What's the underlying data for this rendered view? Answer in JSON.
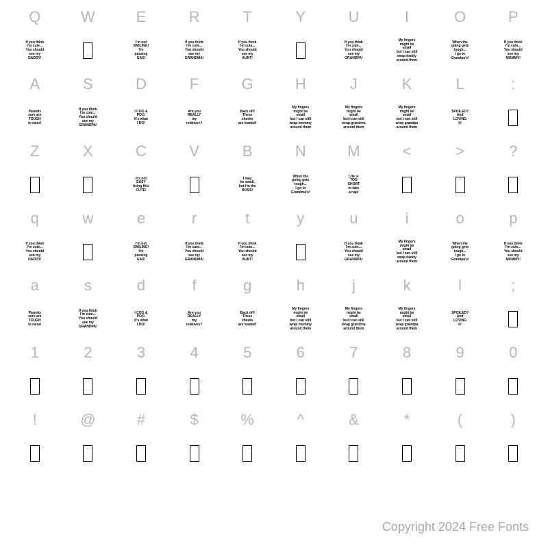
{
  "copyright": "Copyright 2024 Free Fonts",
  "char_color": "#b6b6b6",
  "text_color": "#000000",
  "background": "#ffffff",
  "rows": [
    {
      "chars": [
        "Q",
        "W",
        "E",
        "R",
        "T",
        "Y",
        "U",
        "I",
        "O",
        "P"
      ],
      "glyphs": [
        {
          "t": "text",
          "v": "If you think\nI'm cute...\nYou should\nsee my\nDADDY!"
        },
        {
          "t": "box"
        },
        {
          "t": "text",
          "v": "I'm not\nSMILING!\nI'm\npassing\nGAS!"
        },
        {
          "t": "text",
          "v": "If you think\nI'm cute...\nYou should\nsee my\nGRANDMA!"
        },
        {
          "t": "text",
          "v": "If you think\nI'm cute...\nYou should\nsee my\nAUNT!"
        },
        {
          "t": "box"
        },
        {
          "t": "text",
          "v": "If you think\nI'm cute...\nYou should\nsee my\nGRANDPA!"
        },
        {
          "t": "text",
          "v": "My fingers\nmight be\nsmall\nbut I can still\nwrap daddy\naround them"
        },
        {
          "t": "text",
          "v": "When the\ngoing gets\ntough...\nI go to\nGrandpa's!"
        },
        {
          "t": "text",
          "v": "If you think\nI'm cute...\nYou should\nsee my\nMOMMY!"
        }
      ]
    },
    {
      "chars": [
        "A",
        "S",
        "D",
        "F",
        "G",
        "H",
        "J",
        "K",
        "L",
        ":"
      ],
      "glyphs": [
        {
          "t": "text",
          "v": "Parents\nsure are\nTOUGH\nto raise!"
        },
        {
          "t": "text",
          "v": "If you think\nI'm cute...\nYou should\nsee my\nGRANDPA!"
        },
        {
          "t": "text",
          "v": "I COO &\nPOO.\nIt's what\nI DO!"
        },
        {
          "t": "text",
          "v": "Are you\nREALLY\nmy\nrelatives?"
        },
        {
          "t": "text",
          "v": "Back off!\nThese\ncheeks\nare loaded!"
        },
        {
          "t": "text",
          "v": "My fingers\nmight be\nsmall\nbut I can still\nwrap mommy\naround them"
        },
        {
          "t": "text",
          "v": "My fingers\nmight be\nsmall\nbut I can still\nwrap grandma\naround them"
        },
        {
          "t": "text",
          "v": "My fingers\nmight be\nsmall\nbut I can still\nwrap grandpa\naround them"
        },
        {
          "t": "text",
          "v": "SPOILED?\nAnd\nLOVING\nIt!"
        },
        {
          "t": "box"
        }
      ]
    },
    {
      "chars": [
        "Z",
        "X",
        "C",
        "V",
        "B",
        "N",
        "M",
        "<",
        ">",
        "?"
      ],
      "glyphs": [
        {
          "t": "box"
        },
        {
          "t": "box"
        },
        {
          "t": "text",
          "v": "It's not\nEASY\nbeing this\nCUTE!"
        },
        {
          "t": "box"
        },
        {
          "t": "text",
          "v": "I may\nbe small,\nbut I'm the\nBOSS!"
        },
        {
          "t": "text",
          "v": "When the\ngoing gets\ntough...\nI go to\nGrandma's!"
        },
        {
          "t": "text",
          "v": "Life is\nTOO\nSHORT\nto take\na nap!"
        },
        {
          "t": "box"
        },
        {
          "t": "box"
        },
        {
          "t": "box"
        }
      ]
    },
    {
      "chars": [
        "q",
        "w",
        "e",
        "r",
        "t",
        "y",
        "u",
        "i",
        "o",
        "p"
      ],
      "glyphs": [
        {
          "t": "text",
          "v": "If you think\nI'm cute...\nYou should\nsee my\nDADDY!"
        },
        {
          "t": "box"
        },
        {
          "t": "text",
          "v": "I'm not\nSMILING!\nI'm\npassing\nGAS!"
        },
        {
          "t": "text",
          "v": "If you think\nI'm cute...\nYou should\nsee my\nGRANDMA!"
        },
        {
          "t": "text",
          "v": "If you think\nI'm cute...\nYou should\nsee my\nAUNT!"
        },
        {
          "t": "box"
        },
        {
          "t": "text",
          "v": "If you think\nI'm cute...\nYou should\nsee my\nGRANDPA!"
        },
        {
          "t": "text",
          "v": "My fingers\nmight be\nsmall\nbut I can still\nwrap daddy\naround them"
        },
        {
          "t": "text",
          "v": "When the\ngoing gets\ntough...\nI go to\nGrandpa's!"
        },
        {
          "t": "text",
          "v": "If you think\nI'm cute...\nYou should\nsee my\nMOMMY!"
        }
      ]
    },
    {
      "chars": [
        "a",
        "s",
        "d",
        "f",
        "g",
        "h",
        "j",
        "k",
        "l",
        ";"
      ],
      "glyphs": [
        {
          "t": "text",
          "v": "Parents\nsure are\nTOUGH\nto raise!"
        },
        {
          "t": "text",
          "v": "If you think\nI'm cute...\nYou should\nsee my\nGRANDPA!"
        },
        {
          "t": "text",
          "v": "I COO &\nPOO.\nIt's what\nI DO!"
        },
        {
          "t": "text",
          "v": "Are you\nREALLY\nmy\nrelatives?"
        },
        {
          "t": "text",
          "v": "Back off!\nThese\ncheeks\nare loaded!"
        },
        {
          "t": "text",
          "v": "My fingers\nmight be\nsmall\nbut I can still\nwrap mommy\naround them"
        },
        {
          "t": "text",
          "v": "My fingers\nmight be\nsmall\nbut I can still\nwrap grandma\naround them"
        },
        {
          "t": "text",
          "v": "My fingers\nmight be\nsmall\nbut I can still\nwrap grandpa\naround them"
        },
        {
          "t": "text",
          "v": "SPOILED?\nAnd\nLOVING\nIt!"
        },
        {
          "t": "box"
        }
      ]
    },
    {
      "chars": [
        "1",
        "2",
        "3",
        "4",
        "5",
        "6",
        "7",
        "8",
        "9",
        "0"
      ],
      "glyphs": [
        {
          "t": "box"
        },
        {
          "t": "box"
        },
        {
          "t": "box"
        },
        {
          "t": "box"
        },
        {
          "t": "box"
        },
        {
          "t": "box"
        },
        {
          "t": "box"
        },
        {
          "t": "box"
        },
        {
          "t": "box"
        },
        {
          "t": "box"
        }
      ]
    },
    {
      "chars": [
        "!",
        "@",
        "#",
        "$",
        "%",
        "^",
        "&",
        "*",
        "(",
        ")"
      ],
      "glyphs": [
        {
          "t": "box"
        },
        {
          "t": "box"
        },
        {
          "t": "box"
        },
        {
          "t": "box"
        },
        {
          "t": "box"
        },
        {
          "t": "box"
        },
        {
          "t": "box"
        },
        {
          "t": "box"
        },
        {
          "t": "box"
        },
        {
          "t": "box"
        }
      ]
    }
  ]
}
